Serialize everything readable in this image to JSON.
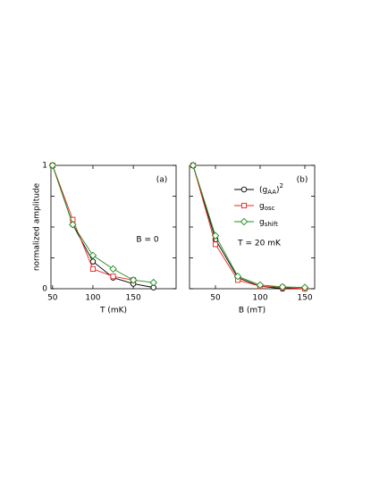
{
  "chart_data": [
    {
      "type": "line",
      "panel": "a",
      "xlabel": "T (mK)",
      "ylabel": "normalized amplitude",
      "xlim": [
        48,
        203
      ],
      "ylim": [
        0,
        1
      ],
      "xticks": [
        50,
        100,
        150
      ],
      "yticks": [
        0,
        1
      ],
      "yticks_minor": [
        0.25,
        0.5,
        0.75
      ],
      "annotations": [
        {
          "text": "(a)"
        },
        {
          "text": "B = 0"
        }
      ],
      "legend": false,
      "series": [
        {
          "color": "#000000",
          "marker": "circle",
          "x": [
            50,
            75,
            100,
            125,
            150,
            175
          ],
          "values": [
            1,
            0.52,
            0.22,
            0.09,
            0.04,
            0.01
          ]
        },
        {
          "color": "#e8241c",
          "marker": "square",
          "x": [
            50,
            75,
            100,
            125,
            150
          ],
          "values": [
            1,
            0.56,
            0.16,
            0.1,
            0.07
          ]
        },
        {
          "color": "#1e8c1e",
          "marker": "diamond",
          "x": [
            50,
            75,
            100,
            125,
            150,
            175
          ],
          "values": [
            1,
            0.52,
            0.27,
            0.16,
            0.07,
            0.05
          ]
        }
      ]
    },
    {
      "type": "line",
      "panel": "b",
      "xlabel": "B (mT)",
      "xlim": [
        21,
        161
      ],
      "ylim": [
        0,
        1
      ],
      "xticks": [
        50,
        100,
        150
      ],
      "yticks_minor": [
        0,
        0.25,
        0.5,
        0.75,
        1
      ],
      "annotations": [
        {
          "text": "(b)"
        },
        {
          "text": "T = 20 mK"
        }
      ],
      "legend": "upper right",
      "series": [
        {
          "name": [
            {
              "text": "(g"
            },
            {
              "text": "AA",
              "pos": "sub"
            },
            {
              "text": ")"
            },
            {
              "text": "2",
              "pos": "sup"
            }
          ],
          "color": "#000000",
          "marker": "circle",
          "x": [
            25,
            50,
            75,
            100,
            125,
            150
          ],
          "values": [
            1,
            0.4,
            0.09,
            0.02,
            0,
            0
          ]
        },
        {
          "name": [
            {
              "text": "g"
            },
            {
              "text": "osc",
              "pos": "sub"
            }
          ],
          "color": "#e8241c",
          "marker": "square",
          "x": [
            25,
            50,
            75,
            100,
            125,
            150
          ],
          "values": [
            1,
            0.36,
            0.07,
            0.02,
            0.01,
            0
          ]
        },
        {
          "name": [
            {
              "text": "g"
            },
            {
              "text": "shift",
              "pos": "sub"
            }
          ],
          "color": "#1e8c1e",
          "marker": "diamond",
          "x": [
            25,
            50,
            75,
            100,
            125,
            150
          ],
          "values": [
            1,
            0.43,
            0.1,
            0.03,
            0.015,
            0.01
          ]
        }
      ]
    }
  ]
}
